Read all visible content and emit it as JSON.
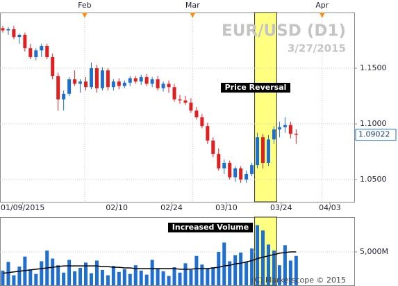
{
  "chart_data": {
    "type": "candlestick",
    "title": "EUR/USD (D1)",
    "subtitle": "3/27/2015",
    "annotations": {
      "price": "Price Reversal",
      "volume": "Increased Volume"
    },
    "copyright": "(C) Marketscope © 2015",
    "up_color": "#1f6fd0",
    "down_color": "#e02020",
    "highlight": [
      46,
      50
    ],
    "highlight_color": "#ffff80",
    "grid": true,
    "xlim": [
      -0.5,
      63.5
    ],
    "xticks": [
      {
        "value": 3.6,
        "label": "01/09/2015"
      },
      {
        "value": 20.6,
        "label": "02/10"
      },
      {
        "value": 30.5,
        "label": "02/24"
      },
      {
        "value": 40.4,
        "label": "03/10"
      },
      {
        "value": 50.3,
        "label": "03/24"
      },
      {
        "value": 59.1,
        "label": "04/03"
      }
    ],
    "top_ticks": [
      {
        "value": 14.8,
        "label": "Feb"
      },
      {
        "value": 34.3,
        "label": "Mar"
      },
      {
        "value": 57.7,
        "label": "Apr"
      }
    ],
    "ylim": [
      1.03,
      1.2
    ],
    "yticks": [
      {
        "value": 1.05,
        "label": "1.0500"
      },
      {
        "value": 1.1,
        "label": "1.1000"
      },
      {
        "value": 1.15,
        "label": "1.1500"
      }
    ],
    "last_label": "1.09022",
    "open": [
      1.186,
      1.184,
      1.185,
      1.178,
      1.18,
      1.168,
      1.16,
      1.166,
      1.17,
      1.16,
      1.143,
      1.122,
      1.127,
      1.14,
      1.136,
      1.138,
      1.133,
      1.15,
      1.132,
      1.148,
      1.133,
      1.138,
      1.134,
      1.137,
      1.141,
      1.138,
      1.142,
      1.136,
      1.14,
      1.132,
      1.136,
      1.133,
      1.122,
      1.121,
      1.119,
      1.112,
      1.106,
      1.098,
      1.085,
      1.073,
      1.06,
      1.065,
      1.052,
      1.06,
      1.05,
      1.055,
      1.063,
      1.088,
      1.065,
      1.086,
      1.095,
      1.097,
      1.099,
      1.091
    ],
    "high": [
      1.188,
      1.187,
      1.188,
      1.181,
      1.182,
      1.172,
      1.168,
      1.172,
      1.172,
      1.163,
      1.146,
      1.13,
      1.142,
      1.148,
      1.14,
      1.142,
      1.155,
      1.153,
      1.151,
      1.15,
      1.14,
      1.141,
      1.139,
      1.143,
      1.143,
      1.144,
      1.145,
      1.142,
      1.143,
      1.138,
      1.139,
      1.136,
      1.126,
      1.125,
      1.123,
      1.115,
      1.109,
      1.101,
      1.088,
      1.078,
      1.068,
      1.067,
      1.062,
      1.062,
      1.058,
      1.065,
      1.092,
      1.091,
      1.09,
      1.098,
      1.102,
      1.106,
      1.102,
      1.095
    ],
    "low": [
      1.182,
      1.18,
      1.176,
      1.172,
      1.165,
      1.158,
      1.157,
      1.16,
      1.158,
      1.14,
      1.112,
      1.112,
      1.125,
      1.134,
      1.128,
      1.13,
      1.131,
      1.128,
      1.13,
      1.13,
      1.13,
      1.131,
      1.132,
      1.134,
      1.136,
      1.135,
      1.134,
      1.133,
      1.13,
      1.129,
      1.128,
      1.12,
      1.118,
      1.117,
      1.11,
      1.104,
      1.096,
      1.082,
      1.07,
      1.058,
      1.055,
      1.05,
      1.048,
      1.047,
      1.047,
      1.053,
      1.06,
      1.06,
      1.062,
      1.082,
      1.088,
      1.092,
      1.087,
      1.082
    ],
    "close": [
      1.184,
      1.185,
      1.178,
      1.18,
      1.168,
      1.16,
      1.166,
      1.17,
      1.16,
      1.143,
      1.122,
      1.127,
      1.14,
      1.136,
      1.138,
      1.133,
      1.15,
      1.132,
      1.148,
      1.133,
      1.138,
      1.134,
      1.137,
      1.141,
      1.138,
      1.142,
      1.136,
      1.14,
      1.132,
      1.136,
      1.133,
      1.122,
      1.121,
      1.119,
      1.112,
      1.106,
      1.098,
      1.085,
      1.073,
      1.06,
      1.065,
      1.052,
      1.06,
      1.05,
      1.055,
      1.063,
      1.088,
      1.065,
      1.086,
      1.095,
      1.097,
      1.099,
      1.091,
      1.09022
    ],
    "volume": {
      "ylim": [
        0,
        10200
      ],
      "yticks": [
        {
          "value": 5000,
          "label": "5,000M"
        }
      ],
      "color": "#1f6fd0",
      "values": [
        2200,
        3500,
        1500,
        2800,
        4300,
        2400,
        1700,
        3600,
        5200,
        4000,
        3000,
        1900,
        3800,
        2100,
        2600,
        3400,
        1800,
        3700,
        2300,
        1500,
        2900,
        2000,
        2400,
        1700,
        3000,
        2200,
        1600,
        3800,
        2500,
        2100,
        1400,
        2700,
        1900,
        3300,
        2300,
        4400,
        3100,
        2500,
        2700,
        5000,
        6400,
        3600,
        4500,
        4900,
        3500,
        5500,
        9000,
        8200,
        6100,
        5200,
        3000,
        6000,
        3700,
        4400
      ],
      "ma_color": "#000000",
      "ma": [
        1800,
        1900,
        2000,
        2100,
        2200,
        2300,
        2400,
        2500,
        2600,
        2700,
        2800,
        2900,
        2900,
        2900,
        2900,
        2900,
        2900,
        2900,
        2800,
        2800,
        2700,
        2700,
        2600,
        2600,
        2500,
        2500,
        2500,
        2500,
        2500,
        2500,
        2500,
        2500,
        2400,
        2400,
        2400,
        2500,
        2500,
        2500,
        2600,
        2700,
        2900,
        3000,
        3200,
        3300,
        3500,
        3700,
        4000,
        4200,
        4400,
        4600,
        4800,
        4900,
        5000,
        5000
      ]
    }
  }
}
